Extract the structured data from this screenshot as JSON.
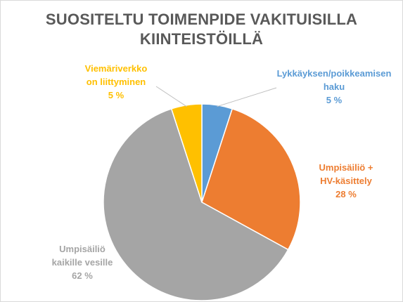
{
  "chart_data": {
    "type": "pie",
    "title_lines": [
      "SUOSITELTU TOIMENPIDE VAKITUISILLA",
      "KIINTEISTÖILLÄ"
    ],
    "start_angle_deg": 0,
    "slices": [
      {
        "label_lines": [
          "Lykkäyksen/poikkeamisen",
          "haku"
        ],
        "value": 5,
        "value_label": "5 %",
        "color": "#5b9bd5"
      },
      {
        "label_lines": [
          "Umpisäiliö +",
          "HV-käsittely"
        ],
        "value": 28,
        "value_label": "28 %",
        "color": "#ed7d31"
      },
      {
        "label_lines": [
          "Umpisäiliö",
          "kaikille vesille"
        ],
        "value": 62,
        "value_label": "62 %",
        "color": "#a5a5a5"
      },
      {
        "label_lines": [
          "Viemäriverkko",
          "on liittyminen"
        ],
        "value": 5,
        "value_label": "5 %",
        "color": "#ffc000"
      }
    ]
  }
}
